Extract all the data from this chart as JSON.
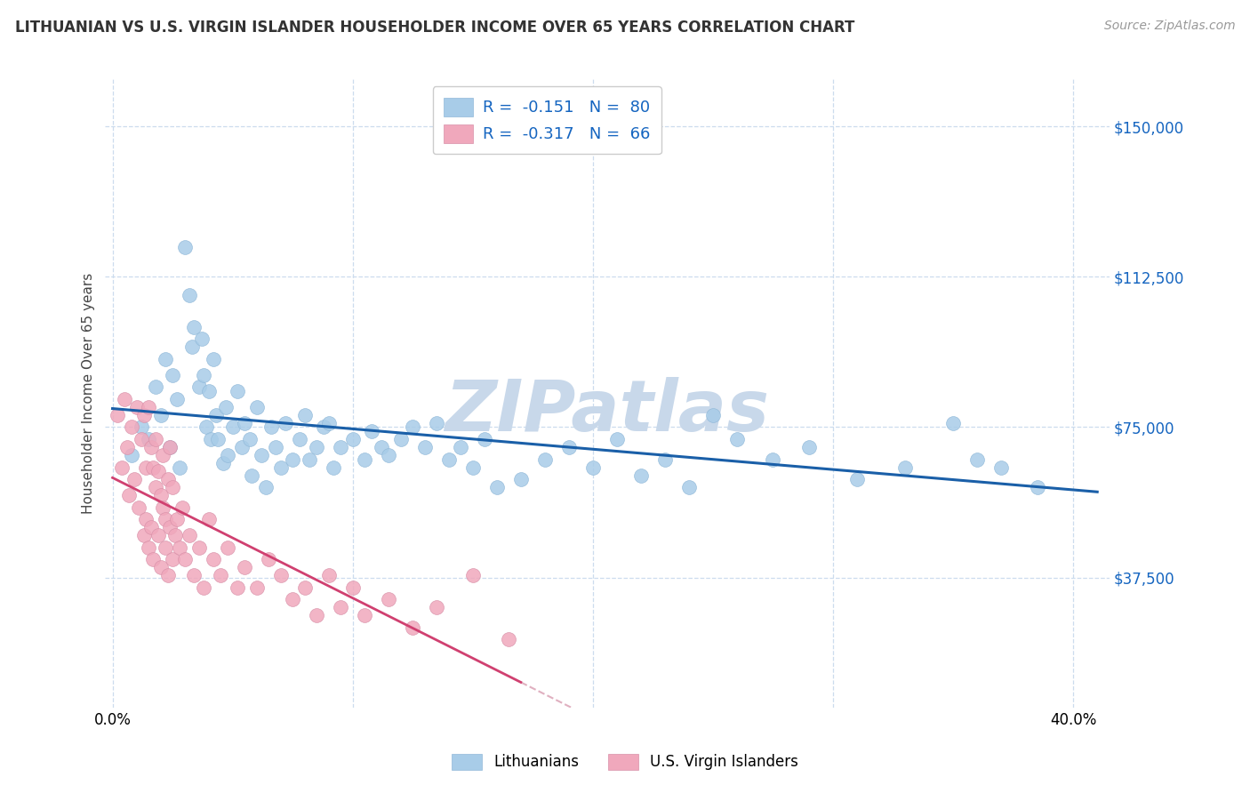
{
  "title": "LITHUANIAN VS U.S. VIRGIN ISLANDER HOUSEHOLDER INCOME OVER 65 YEARS CORRELATION CHART",
  "source_text": "Source: ZipAtlas.com",
  "ylabel": "Householder Income Over 65 years",
  "xlim": [
    -0.003,
    0.415
  ],
  "ylim": [
    5000,
    162000
  ],
  "ytick_vals": [
    37500,
    75000,
    112500,
    150000
  ],
  "ytick_labels": [
    "$37,500",
    "$75,000",
    "$112,500",
    "$150,000"
  ],
  "xtick_vals": [
    0.0,
    0.1,
    0.2,
    0.3,
    0.4
  ],
  "xtick_labels": [
    "0.0%",
    "",
    "",
    "",
    "40.0%"
  ],
  "blue_color": "#A8CCE8",
  "pink_color": "#F0A8BC",
  "blue_line_color": "#1A5FA8",
  "pink_line_color": "#D04070",
  "pink_dash_color": "#E0B0C0",
  "legend_text_color": "#1565C0",
  "R_blue": -0.151,
  "N_blue": 80,
  "R_pink": -0.317,
  "N_pink": 66,
  "watermark": "ZIPatlas",
  "watermark_color": "#C8D8EA",
  "background_color": "#FFFFFF",
  "grid_color": "#CCDCEE",
  "title_color": "#333333",
  "source_color": "#999999",
  "ylabel_color": "#444444",
  "blue_scatter_x": [
    0.008,
    0.012,
    0.015,
    0.018,
    0.02,
    0.022,
    0.024,
    0.025,
    0.027,
    0.028,
    0.03,
    0.032,
    0.033,
    0.034,
    0.036,
    0.037,
    0.038,
    0.039,
    0.04,
    0.041,
    0.042,
    0.043,
    0.044,
    0.046,
    0.047,
    0.048,
    0.05,
    0.052,
    0.054,
    0.055,
    0.057,
    0.058,
    0.06,
    0.062,
    0.064,
    0.066,
    0.068,
    0.07,
    0.072,
    0.075,
    0.078,
    0.08,
    0.082,
    0.085,
    0.088,
    0.09,
    0.092,
    0.095,
    0.1,
    0.105,
    0.108,
    0.112,
    0.115,
    0.12,
    0.125,
    0.13,
    0.135,
    0.14,
    0.145,
    0.15,
    0.155,
    0.16,
    0.17,
    0.18,
    0.19,
    0.2,
    0.21,
    0.22,
    0.23,
    0.24,
    0.25,
    0.26,
    0.275,
    0.29,
    0.31,
    0.33,
    0.35,
    0.36,
    0.37,
    0.385
  ],
  "blue_scatter_y": [
    68000,
    75000,
    72000,
    85000,
    78000,
    92000,
    70000,
    88000,
    82000,
    65000,
    120000,
    108000,
    95000,
    100000,
    85000,
    97000,
    88000,
    75000,
    84000,
    72000,
    92000,
    78000,
    72000,
    66000,
    80000,
    68000,
    75000,
    84000,
    70000,
    76000,
    72000,
    63000,
    80000,
    68000,
    60000,
    75000,
    70000,
    65000,
    76000,
    67000,
    72000,
    78000,
    67000,
    70000,
    75000,
    76000,
    65000,
    70000,
    72000,
    67000,
    74000,
    70000,
    68000,
    72000,
    75000,
    70000,
    76000,
    67000,
    70000,
    65000,
    72000,
    60000,
    62000,
    67000,
    70000,
    65000,
    72000,
    63000,
    67000,
    60000,
    78000,
    72000,
    67000,
    70000,
    62000,
    65000,
    76000,
    67000,
    65000,
    60000
  ],
  "pink_scatter_x": [
    0.002,
    0.004,
    0.005,
    0.006,
    0.007,
    0.008,
    0.009,
    0.01,
    0.011,
    0.012,
    0.013,
    0.013,
    0.014,
    0.014,
    0.015,
    0.015,
    0.016,
    0.016,
    0.017,
    0.017,
    0.018,
    0.018,
    0.019,
    0.019,
    0.02,
    0.02,
    0.021,
    0.021,
    0.022,
    0.022,
    0.023,
    0.023,
    0.024,
    0.024,
    0.025,
    0.025,
    0.026,
    0.027,
    0.028,
    0.029,
    0.03,
    0.032,
    0.034,
    0.036,
    0.038,
    0.04,
    0.042,
    0.045,
    0.048,
    0.052,
    0.055,
    0.06,
    0.065,
    0.07,
    0.075,
    0.08,
    0.085,
    0.09,
    0.095,
    0.1,
    0.105,
    0.115,
    0.125,
    0.135,
    0.15,
    0.165
  ],
  "pink_scatter_y": [
    78000,
    65000,
    82000,
    70000,
    58000,
    75000,
    62000,
    80000,
    55000,
    72000,
    48000,
    78000,
    65000,
    52000,
    80000,
    45000,
    70000,
    50000,
    65000,
    42000,
    60000,
    72000,
    48000,
    64000,
    58000,
    40000,
    55000,
    68000,
    45000,
    52000,
    62000,
    38000,
    50000,
    70000,
    42000,
    60000,
    48000,
    52000,
    45000,
    55000,
    42000,
    48000,
    38000,
    45000,
    35000,
    52000,
    42000,
    38000,
    45000,
    35000,
    40000,
    35000,
    42000,
    38000,
    32000,
    35000,
    28000,
    38000,
    30000,
    35000,
    28000,
    32000,
    25000,
    30000,
    38000,
    22000
  ]
}
